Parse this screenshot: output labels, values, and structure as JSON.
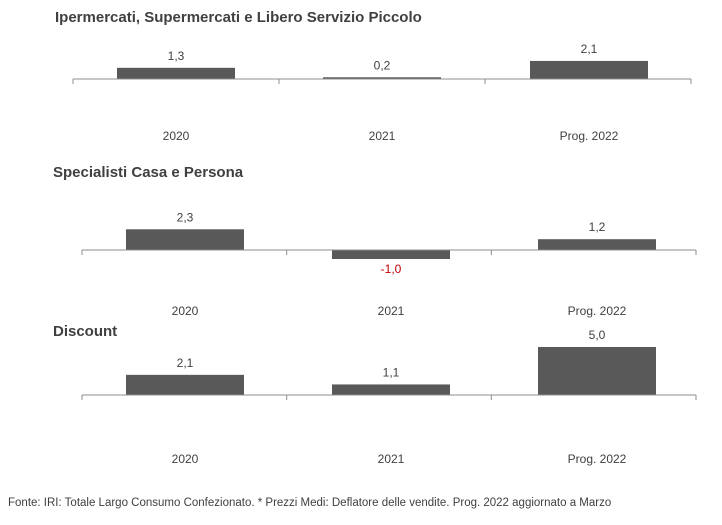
{
  "colors": {
    "bar": "#595959",
    "axis": "#8c8c8c",
    "label": "#404040",
    "title": "#404040",
    "negative_label": "#c00000"
  },
  "footnote": "Fonte: IRI: Totale Largo Consumo Confezionato.  * Prezzi  Medi: Deflatore delle vendite.  Prog. 2022 aggiornato a Marzo",
  "chart_data": [
    {
      "type": "bar",
      "title": "Ipermercati,  Supermercati e Libero Servizio Piccolo",
      "categories": [
        "2020",
        "2021",
        "Prog. 2022"
      ],
      "values": [
        1.3,
        0.2,
        2.1
      ],
      "value_labels": [
        "1,3",
        "0,2",
        "2,1"
      ],
      "xlabel": "",
      "ylabel": "",
      "grid": false
    },
    {
      "type": "bar",
      "title": "Specialisti  Casa e Persona",
      "categories": [
        "2020",
        "2021",
        "Prog. 2022"
      ],
      "values": [
        2.3,
        -1.0,
        1.2
      ],
      "value_labels": [
        "2,3",
        "-1,0",
        "1,2"
      ],
      "xlabel": "",
      "ylabel": "",
      "grid": false
    },
    {
      "type": "bar",
      "title": "Discount",
      "categories": [
        "2020",
        "2021",
        "Prog. 2022"
      ],
      "values": [
        2.1,
        1.1,
        5.0
      ],
      "value_labels": [
        "2,1",
        "1,1",
        "5,0"
      ],
      "xlabel": "",
      "ylabel": "",
      "grid": false
    }
  ]
}
